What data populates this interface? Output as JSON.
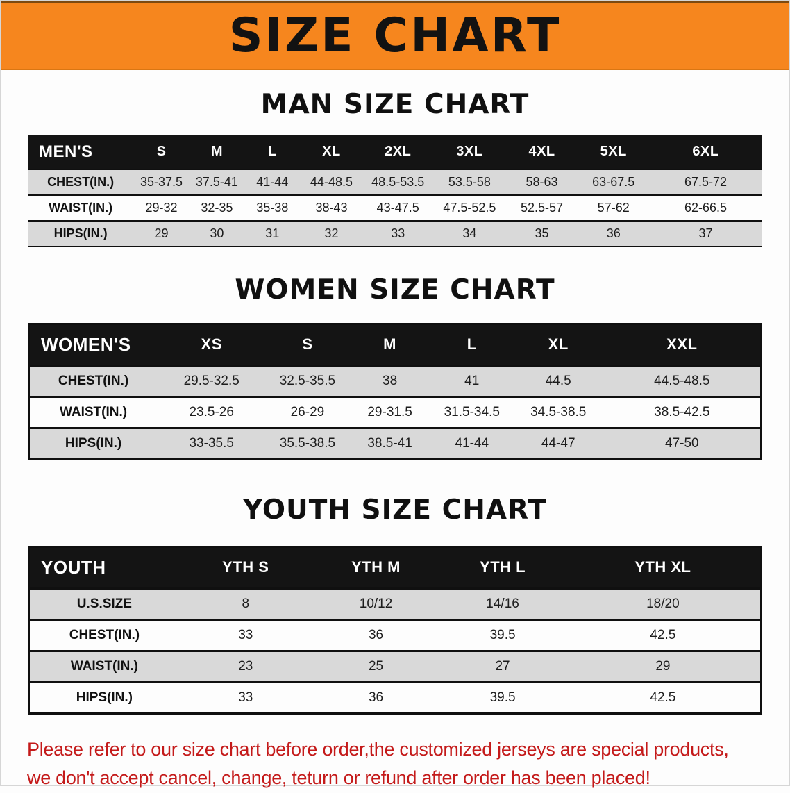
{
  "banner": {
    "title": "SIZE CHART"
  },
  "colors": {
    "banner_orange": "#F6861E",
    "header_black": "#141414",
    "row_gray": "#D9D9D9",
    "note_red": "#C41A1A"
  },
  "men": {
    "heading": "MAN SIZE CHART",
    "table": {
      "header": [
        "MEN'S",
        "S",
        "M",
        "L",
        "XL",
        "2XL",
        "3XL",
        "4XL",
        "5XL",
        "6XL"
      ],
      "rows": [
        [
          "CHEST(IN.)",
          "35-37.5",
          "37.5-41",
          "41-44",
          "44-48.5",
          "48.5-53.5",
          "53.5-58",
          "58-63",
          "63-67.5",
          "67.5-72"
        ],
        [
          "WAIST(IN.)",
          "29-32",
          "32-35",
          "35-38",
          "38-43",
          "43-47.5",
          "47.5-52.5",
          "52.5-57",
          "57-62",
          "62-66.5"
        ],
        [
          "HIPS(IN.)",
          "29",
          "30",
          "31",
          "32",
          "33",
          "34",
          "35",
          "36",
          "37"
        ]
      ]
    }
  },
  "women": {
    "heading": "WOMEN SIZE CHART",
    "table": {
      "header": [
        "WOMEN'S",
        "XS",
        "S",
        "M",
        "L",
        "XL",
        "XXL"
      ],
      "rows": [
        [
          "CHEST(IN.)",
          "29.5-32.5",
          "32.5-35.5",
          "38",
          "41",
          "44.5",
          "44.5-48.5"
        ],
        [
          "WAIST(IN.)",
          "23.5-26",
          "26-29",
          "29-31.5",
          "31.5-34.5",
          "34.5-38.5",
          "38.5-42.5"
        ],
        [
          "HIPS(IN.)",
          "33-35.5",
          "35.5-38.5",
          "38.5-41",
          "41-44",
          "44-47",
          "47-50"
        ]
      ]
    }
  },
  "youth": {
    "heading": "YOUTH SIZE CHART",
    "table": {
      "header": [
        "YOUTH",
        "YTH S",
        "YTH M",
        "YTH L",
        "YTH XL"
      ],
      "rows": [
        [
          "U.S.SIZE",
          "8",
          "10/12",
          "14/16",
          "18/20"
        ],
        [
          "CHEST(IN.)",
          "33",
          "36",
          "39.5",
          "42.5"
        ],
        [
          "WAIST(IN.)",
          "23",
          "25",
          "27",
          "29"
        ],
        [
          "HIPS(IN.)",
          "33",
          "36",
          "39.5",
          "42.5"
        ]
      ]
    }
  },
  "note": {
    "line1": "Please refer to our size chart before order,the customized jerseys are special products,",
    "line2": "we don't accept cancel, change, teturn or refund after order has been placed!"
  }
}
